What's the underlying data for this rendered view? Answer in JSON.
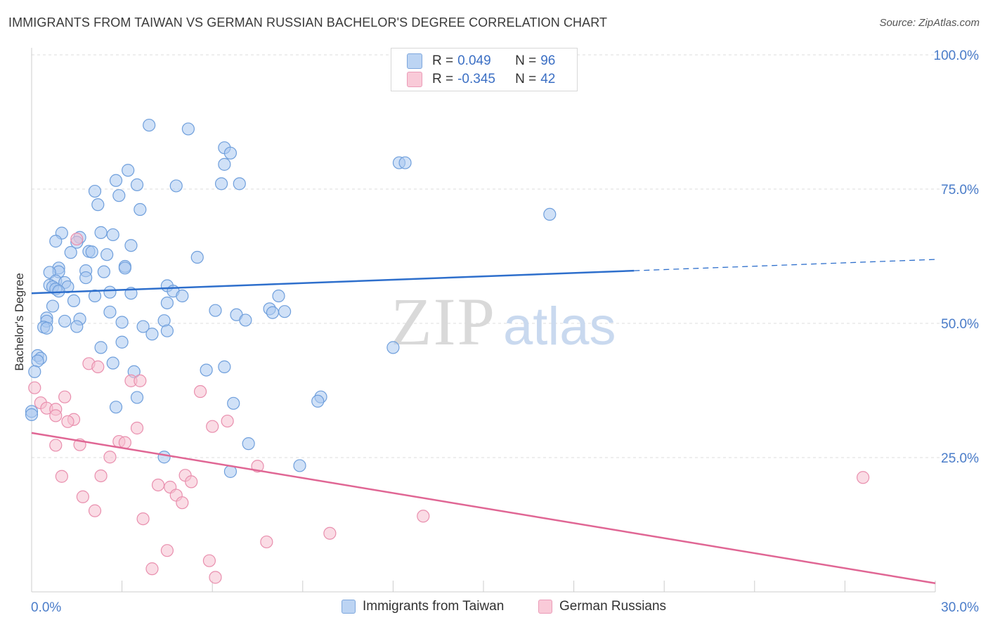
{
  "title": "IMMIGRANTS FROM TAIWAN VS GERMAN RUSSIAN BACHELOR'S DEGREE CORRELATION CHART",
  "source": "Source: ZipAtlas.com",
  "watermark": {
    "zip": "ZIP",
    "atlas": "atlas"
  },
  "colors": {
    "taiwan_fill": "#a9c8f0",
    "taiwan_stroke": "#6f9fdc",
    "taiwan_line": "#2e6fcc",
    "german_fill": "#f6bfd0",
    "german_stroke": "#e98fae",
    "german_line": "#e06694",
    "axis_text": "#4a7cc9",
    "grid": "#dddddd"
  },
  "legend_top": {
    "rows": [
      {
        "r_label": "R =",
        "r_value": "0.049",
        "n_label": "N =",
        "n_value": "96"
      },
      {
        "r_label": "R =",
        "r_value": "-0.345",
        "n_label": "N =",
        "n_value": "42"
      }
    ]
  },
  "chart_data": {
    "type": "scatter",
    "title": "IMMIGRANTS FROM TAIWAN VS GERMAN RUSSIAN BACHELOR'S DEGREE CORRELATION CHART",
    "xlabel": "",
    "ylabel": "Bachelor's Degree",
    "xlim": [
      0,
      30
    ],
    "ylim": [
      0,
      100
    ],
    "x_tick_labels": [
      {
        "value": 0,
        "label": "0.0%"
      },
      {
        "value": 30,
        "label": "30.0%"
      }
    ],
    "y_tick_labels": [
      {
        "value": 25,
        "label": "25.0%"
      },
      {
        "value": 50,
        "label": "50.0%"
      },
      {
        "value": 75,
        "label": "75.0%"
      },
      {
        "value": 100,
        "label": "100.0%"
      }
    ],
    "grid": true,
    "legend_position": "bottom",
    "series": [
      {
        "name": "Immigrants from Taiwan",
        "r": 0.049,
        "n": 96,
        "trend": {
          "x0": 0,
          "y0": 55.6,
          "x1": 20,
          "y1": 59.8,
          "dash_to_x": 30,
          "dash_to_y": 61.9
        },
        "points": [
          [
            3.9,
            86.9
          ],
          [
            5.2,
            86.2
          ],
          [
            6.4,
            82.7
          ],
          [
            6.6,
            81.7
          ],
          [
            6.4,
            79.6
          ],
          [
            3.2,
            78.5
          ],
          [
            12.2,
            79.9
          ],
          [
            12.4,
            79.9
          ],
          [
            2.8,
            76.6
          ],
          [
            3.5,
            75.8
          ],
          [
            4.8,
            75.6
          ],
          [
            6.3,
            76.0
          ],
          [
            6.9,
            76.0
          ],
          [
            2.1,
            74.6
          ],
          [
            2.9,
            73.8
          ],
          [
            2.2,
            72.1
          ],
          [
            3.6,
            71.2
          ],
          [
            17.2,
            70.3
          ],
          [
            1.0,
            66.8
          ],
          [
            2.3,
            66.9
          ],
          [
            2.7,
            66.5
          ],
          [
            1.6,
            66.0
          ],
          [
            0.8,
            65.3
          ],
          [
            1.5,
            65.1
          ],
          [
            3.3,
            64.5
          ],
          [
            1.3,
            63.2
          ],
          [
            1.9,
            63.4
          ],
          [
            2.0,
            63.3
          ],
          [
            2.5,
            62.8
          ],
          [
            5.5,
            62.3
          ],
          [
            3.1,
            60.6
          ],
          [
            3.1,
            60.3
          ],
          [
            0.9,
            60.3
          ],
          [
            1.8,
            59.8
          ],
          [
            2.4,
            59.6
          ],
          [
            0.9,
            59.6
          ],
          [
            0.6,
            59.5
          ],
          [
            1.8,
            58.5
          ],
          [
            0.8,
            57.9
          ],
          [
            1.1,
            57.6
          ],
          [
            0.6,
            57.1
          ],
          [
            0.7,
            56.8
          ],
          [
            1.2,
            56.8
          ],
          [
            0.8,
            56.4
          ],
          [
            0.9,
            56.0
          ],
          [
            4.5,
            57.0
          ],
          [
            4.7,
            56.0
          ],
          [
            2.6,
            55.8
          ],
          [
            3.3,
            55.6
          ],
          [
            2.1,
            55.1
          ],
          [
            5.0,
            55.1
          ],
          [
            8.2,
            55.1
          ],
          [
            1.4,
            54.2
          ],
          [
            4.5,
            53.8
          ],
          [
            0.7,
            53.2
          ],
          [
            7.9,
            52.7
          ],
          [
            6.1,
            52.4
          ],
          [
            8.4,
            52.2
          ],
          [
            2.6,
            52.1
          ],
          [
            8.0,
            52.0
          ],
          [
            6.8,
            51.6
          ],
          [
            0.5,
            51.0
          ],
          [
            0.5,
            50.4
          ],
          [
            1.1,
            50.4
          ],
          [
            1.6,
            50.8
          ],
          [
            3.0,
            50.2
          ],
          [
            4.4,
            50.5
          ],
          [
            7.1,
            50.6
          ],
          [
            0.4,
            49.3
          ],
          [
            0.5,
            49.1
          ],
          [
            1.5,
            49.4
          ],
          [
            3.7,
            49.4
          ],
          [
            4.5,
            48.6
          ],
          [
            4.0,
            48.0
          ],
          [
            12.0,
            45.5
          ],
          [
            2.3,
            45.5
          ],
          [
            3.0,
            46.5
          ],
          [
            0.2,
            44.0
          ],
          [
            0.3,
            43.5
          ],
          [
            0.2,
            43.0
          ],
          [
            2.7,
            42.6
          ],
          [
            6.4,
            41.9
          ],
          [
            5.8,
            41.3
          ],
          [
            3.4,
            41.0
          ],
          [
            0.1,
            41.0
          ],
          [
            3.5,
            36.2
          ],
          [
            9.6,
            36.3
          ],
          [
            9.5,
            35.5
          ],
          [
            6.7,
            35.1
          ],
          [
            2.8,
            34.4
          ],
          [
            0.0,
            33.6
          ],
          [
            7.2,
            27.6
          ],
          [
            4.4,
            25.1
          ],
          [
            8.9,
            23.5
          ],
          [
            6.6,
            22.4
          ],
          [
            0.0,
            33.0
          ]
        ]
      },
      {
        "name": "German Russians",
        "r": -0.345,
        "n": 42,
        "trend": {
          "x0": 0,
          "y0": 29.6,
          "x1": 30,
          "y1": 1.6
        },
        "points": [
          [
            1.5,
            65.7
          ],
          [
            1.9,
            42.5
          ],
          [
            2.2,
            41.9
          ],
          [
            3.3,
            39.3
          ],
          [
            3.6,
            39.3
          ],
          [
            0.1,
            38.0
          ],
          [
            5.6,
            37.3
          ],
          [
            1.1,
            36.3
          ],
          [
            0.3,
            35.2
          ],
          [
            0.5,
            34.2
          ],
          [
            0.8,
            34.0
          ],
          [
            1.4,
            32.1
          ],
          [
            0.8,
            32.8
          ],
          [
            1.2,
            31.7
          ],
          [
            6.5,
            31.8
          ],
          [
            6.0,
            30.8
          ],
          [
            3.5,
            30.5
          ],
          [
            2.9,
            28.0
          ],
          [
            3.1,
            27.8
          ],
          [
            1.6,
            27.4
          ],
          [
            0.8,
            27.3
          ],
          [
            2.6,
            25.1
          ],
          [
            7.5,
            23.4
          ],
          [
            5.1,
            21.7
          ],
          [
            27.6,
            21.3
          ],
          [
            1.0,
            21.5
          ],
          [
            2.3,
            21.6
          ],
          [
            5.3,
            20.5
          ],
          [
            4.2,
            19.9
          ],
          [
            4.6,
            19.5
          ],
          [
            4.8,
            18.0
          ],
          [
            1.7,
            17.7
          ],
          [
            5.0,
            16.6
          ],
          [
            2.1,
            15.1
          ],
          [
            13.0,
            14.1
          ],
          [
            3.7,
            13.6
          ],
          [
            9.9,
            10.9
          ],
          [
            7.8,
            9.3
          ],
          [
            4.5,
            7.7
          ],
          [
            5.9,
            5.8
          ],
          [
            4.0,
            4.3
          ],
          [
            6.1,
            2.7
          ]
        ]
      }
    ]
  }
}
